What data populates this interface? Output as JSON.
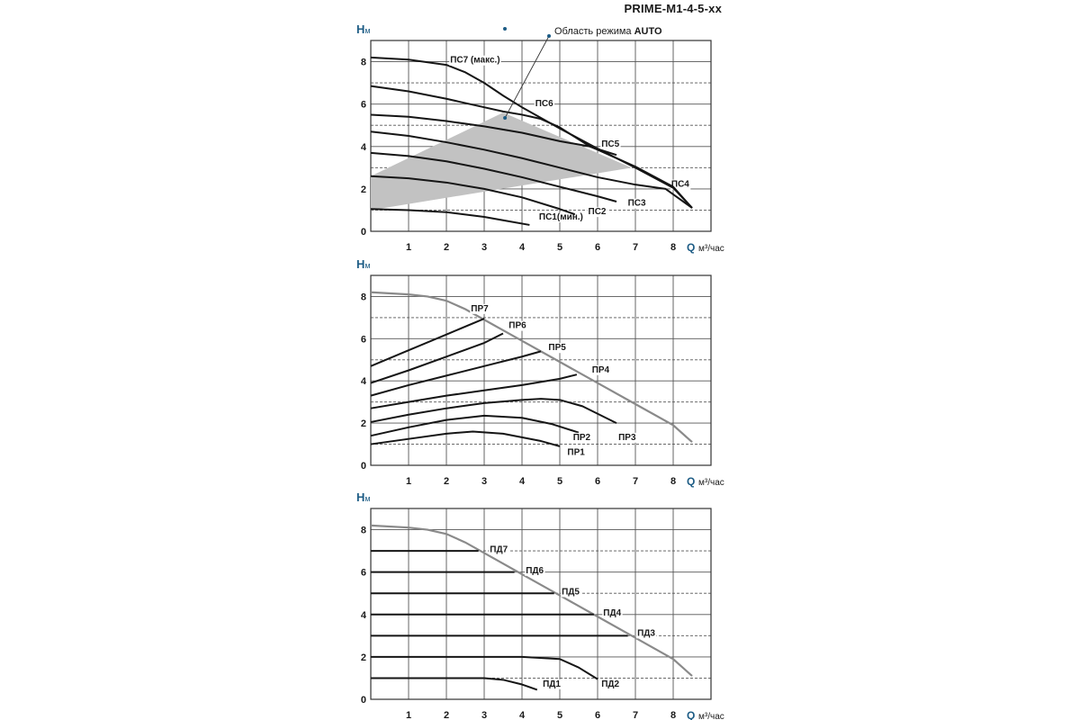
{
  "page_title": "PRIME-M1-4-5-xx",
  "annotation": {
    "text": "Область режима ",
    "bold": "AUTO"
  },
  "chart_data": [
    {
      "type": "line",
      "title": "",
      "ylabel_main": "Н",
      "ylabel_sub": "м",
      "xlabel": "Q",
      "xunit": "м³/час",
      "xlim": [
        0,
        9
      ],
      "ylim": [
        0,
        9
      ],
      "xticks": [
        1,
        2,
        3,
        4,
        5,
        6,
        7,
        8
      ],
      "yticks": [
        0,
        2,
        4,
        6,
        8
      ],
      "auto_region": [
        [
          0,
          1.0
        ],
        [
          0,
          2.6
        ],
        [
          3.5,
          5.6
        ],
        [
          6.9,
          3.0
        ]
      ],
      "series": [
        {
          "name": "ПС1(мин.)",
          "x": [
            0,
            1,
            2,
            3,
            3.5,
            4.2
          ],
          "y": [
            1.05,
            1.0,
            0.9,
            0.68,
            0.52,
            0.3
          ],
          "label_at": [
            4.45,
            0.55
          ]
        },
        {
          "name": "ПС2",
          "x": [
            0,
            1,
            2,
            3,
            4,
            5,
            5.4
          ],
          "y": [
            2.6,
            2.5,
            2.3,
            2.0,
            1.6,
            1.05,
            0.8
          ],
          "label_at": [
            5.75,
            0.8
          ]
        },
        {
          "name": "ПС3",
          "x": [
            0,
            1,
            2,
            3,
            4,
            5,
            6,
            6.5
          ],
          "y": [
            3.7,
            3.55,
            3.3,
            2.95,
            2.55,
            2.1,
            1.65,
            1.4
          ],
          "label_at": [
            6.8,
            1.2
          ]
        },
        {
          "name": "ПС4",
          "x": [
            0,
            1,
            2,
            3,
            4,
            5,
            6,
            7,
            7.8,
            8.5
          ],
          "y": [
            4.7,
            4.5,
            4.2,
            3.85,
            3.45,
            3.0,
            2.55,
            2.2,
            2.0,
            1.1
          ],
          "label_at": [
            7.95,
            2.1
          ]
        },
        {
          "name": "ПС5",
          "x": [
            0,
            1,
            2,
            3,
            4,
            5,
            5.8,
            6.5
          ],
          "y": [
            5.5,
            5.4,
            5.2,
            4.95,
            4.65,
            4.25,
            4.0,
            3.6
          ],
          "label_at": [
            6.1,
            4.0
          ]
        },
        {
          "name": "ПС6",
          "x": [
            0,
            1,
            2,
            3,
            3.5,
            4,
            4.5,
            5,
            5.8,
            6,
            7,
            8,
            8.5
          ],
          "y": [
            6.85,
            6.6,
            6.25,
            5.85,
            5.65,
            5.5,
            5.3,
            4.9,
            4.0,
            3.85,
            3.05,
            2.1,
            1.1
          ],
          "label_at": [
            4.35,
            5.9
          ]
        },
        {
          "name": "ПС7 (макс.)",
          "x": [
            0,
            1,
            2,
            2.5,
            3,
            3.5,
            4,
            4.5,
            5,
            6,
            7,
            8,
            8.5
          ],
          "y": [
            8.2,
            8.1,
            7.85,
            7.5,
            7.0,
            6.4,
            5.85,
            5.35,
            4.85,
            3.9,
            3.0,
            2.05,
            1.1
          ],
          "label_at": [
            2.1,
            7.95
          ]
        }
      ]
    },
    {
      "type": "line",
      "title": "",
      "ylabel_main": "Н",
      "ylabel_sub": "м",
      "xlabel": "Q",
      "xunit": "м³/час",
      "xlim": [
        0,
        9
      ],
      "ylim": [
        0,
        9
      ],
      "xticks": [
        1,
        2,
        3,
        4,
        5,
        6,
        7,
        8
      ],
      "yticks": [
        0,
        2,
        4,
        6,
        8
      ],
      "envelope": {
        "x": [
          0,
          1,
          1.5,
          2,
          2.5,
          3,
          4,
          5,
          6,
          7,
          8,
          8.5
        ],
        "y": [
          8.2,
          8.1,
          8.0,
          7.8,
          7.4,
          6.9,
          5.9,
          4.9,
          3.9,
          2.9,
          1.9,
          1.1
        ]
      },
      "series": [
        {
          "name": "ПР1",
          "x": [
            0,
            1,
            2,
            2.7,
            3.5,
            4.5,
            5
          ],
          "y": [
            1.0,
            1.25,
            1.5,
            1.6,
            1.5,
            1.15,
            0.9
          ],
          "label_at": [
            5.2,
            0.5
          ]
        },
        {
          "name": "ПР2",
          "x": [
            0,
            1,
            2,
            3,
            4,
            4.8,
            5.5
          ],
          "y": [
            1.4,
            1.8,
            2.15,
            2.35,
            2.25,
            1.95,
            1.55
          ],
          "label_at": [
            5.35,
            1.2
          ]
        },
        {
          "name": "ПР3",
          "x": [
            0,
            1,
            2,
            3,
            4,
            4.5,
            5,
            5.6,
            6.5
          ],
          "y": [
            2.05,
            2.4,
            2.7,
            2.95,
            3.1,
            3.15,
            3.1,
            2.8,
            2.0
          ],
          "label_at": [
            6.55,
            1.2
          ]
        },
        {
          "name": "ПР4",
          "x": [
            0,
            1,
            2,
            3,
            4,
            5,
            5.45
          ],
          "y": [
            2.7,
            3.0,
            3.3,
            3.55,
            3.8,
            4.1,
            4.3
          ],
          "label_at": [
            5.85,
            4.4
          ]
        },
        {
          "name": "ПР5",
          "x": [
            0,
            1,
            2,
            3,
            4,
            4.5
          ],
          "y": [
            3.3,
            3.8,
            4.25,
            4.7,
            5.15,
            5.4
          ],
          "label_at": [
            4.7,
            5.45
          ]
        },
        {
          "name": "ПР6",
          "x": [
            0,
            1,
            2,
            3,
            3.5
          ],
          "y": [
            3.9,
            4.5,
            5.15,
            5.8,
            6.25
          ],
          "label_at": [
            3.65,
            6.5
          ]
        },
        {
          "name": "ПР7",
          "x": [
            0,
            1,
            2,
            3
          ],
          "y": [
            4.7,
            5.45,
            6.2,
            6.95
          ],
          "label_at": [
            2.65,
            7.3
          ]
        }
      ]
    },
    {
      "type": "line",
      "title": "",
      "ylabel_main": "Н",
      "ylabel_sub": "м",
      "xlabel": "Q",
      "xunit": "м³/час",
      "xlim": [
        0,
        9
      ],
      "ylim": [
        0,
        9
      ],
      "xticks": [
        1,
        2,
        3,
        4,
        5,
        6,
        7,
        8
      ],
      "yticks": [
        0,
        2,
        4,
        6,
        8
      ],
      "envelope": {
        "x": [
          0,
          1,
          1.5,
          2,
          2.5,
          3,
          4,
          5,
          6,
          7,
          8,
          8.5
        ],
        "y": [
          8.2,
          8.1,
          8.0,
          7.8,
          7.4,
          6.9,
          5.9,
          4.9,
          3.9,
          2.9,
          1.9,
          1.1
        ]
      },
      "series": [
        {
          "name": "ПД1",
          "x": [
            0,
            1,
            2,
            3,
            3.5,
            4,
            4.4
          ],
          "y": [
            1.0,
            1.0,
            1.0,
            1.0,
            0.92,
            0.7,
            0.45
          ],
          "label_at": [
            4.55,
            0.6
          ]
        },
        {
          "name": "ПД2",
          "x": [
            0,
            1,
            2,
            3,
            4,
            5,
            5.5,
            6
          ],
          "y": [
            2.0,
            2.0,
            2.0,
            2.0,
            2.0,
            1.9,
            1.5,
            0.95
          ],
          "label_at": [
            6.1,
            0.6
          ]
        },
        {
          "name": "ПД3",
          "x": [
            0,
            6.8
          ],
          "y": [
            3.0,
            3.0
          ],
          "label_at": [
            7.05,
            3.0
          ]
        },
        {
          "name": "ПД4",
          "x": [
            0,
            5.9
          ],
          "y": [
            4.0,
            4.0
          ],
          "label_at": [
            6.15,
            3.95
          ]
        },
        {
          "name": "ПД5",
          "x": [
            0,
            4.85
          ],
          "y": [
            5.0,
            5.0
          ],
          "label_at": [
            5.05,
            4.95
          ]
        },
        {
          "name": "ПД6",
          "x": [
            0,
            3.8
          ],
          "y": [
            6.0,
            6.0
          ],
          "label_at": [
            4.1,
            5.95
          ]
        },
        {
          "name": "ПД7",
          "x": [
            0,
            2.85
          ],
          "y": [
            7.0,
            7.0
          ],
          "label_at": [
            3.15,
            6.95
          ]
        }
      ]
    }
  ]
}
